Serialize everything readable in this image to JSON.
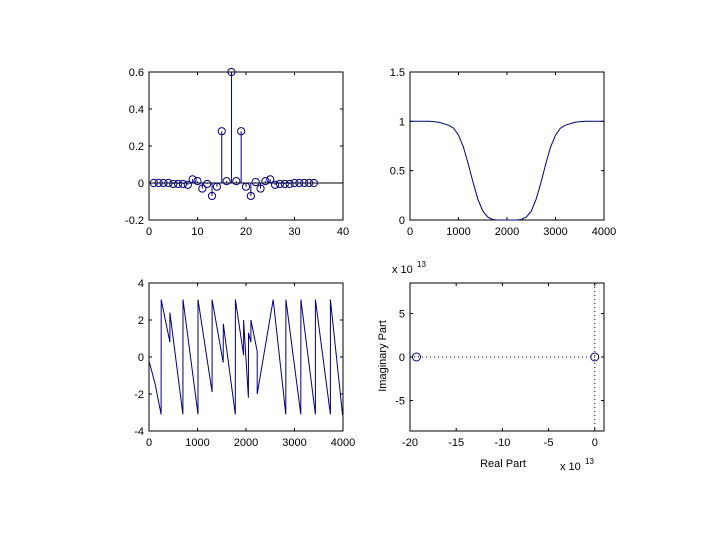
{
  "figure": {
    "background": "#ffffff",
    "line_color": "#00007f"
  },
  "chart_data": [
    {
      "type": "stem",
      "title": "",
      "xlabel": "",
      "ylabel": "",
      "xlim": [
        0,
        40
      ],
      "ylim": [
        -0.2,
        0.6
      ],
      "xticks": [
        0,
        10,
        20,
        30,
        40
      ],
      "xtick_labels": [
        "0",
        "10",
        "20",
        "30",
        "40"
      ],
      "yticks": [
        -0.2,
        0,
        0.2,
        0.4,
        0.6
      ],
      "ytick_labels": [
        "-0.2",
        "0",
        "0.2",
        "0.4",
        "0.6"
      ],
      "grid": false,
      "color": "#00007f",
      "marker": "circle",
      "x": [
        1,
        2,
        3,
        4,
        5,
        6,
        7,
        8,
        9,
        10,
        11,
        12,
        13,
        14,
        15,
        16,
        17,
        18,
        19,
        20,
        21,
        22,
        23,
        24,
        25,
        26,
        27,
        28,
        29,
        30,
        31,
        32,
        33,
        34
      ],
      "y": [
        0,
        0,
        0,
        0,
        -0.005,
        -0.005,
        -0.005,
        -0.01,
        0.02,
        0.01,
        -0.03,
        -0.005,
        -0.07,
        -0.02,
        0.28,
        0.01,
        0.6,
        0.01,
        0.28,
        -0.02,
        -0.07,
        0.005,
        -0.03,
        0.01,
        0.02,
        -0.01,
        -0.005,
        -0.005,
        -0.005,
        0,
        0,
        0,
        0,
        0
      ]
    },
    {
      "type": "line",
      "title": "",
      "xlabel": "",
      "ylabel": "",
      "xlim": [
        0,
        4000
      ],
      "ylim": [
        0,
        1.5
      ],
      "xticks": [
        0,
        1000,
        2000,
        3000,
        4000
      ],
      "xtick_labels": [
        "0",
        "1000",
        "2000",
        "3000",
        "4000"
      ],
      "yticks": [
        0,
        0.5,
        1,
        1.5
      ],
      "ytick_labels": [
        "0",
        "0.5",
        "1",
        "1.5"
      ],
      "grid": false,
      "color": "#00007f",
      "x": [
        0,
        200,
        400,
        600,
        800,
        900,
        1000,
        1100,
        1200,
        1300,
        1400,
        1500,
        1600,
        1700,
        1800,
        1900,
        2000,
        2100,
        2200,
        2300,
        2400,
        2500,
        2600,
        2700,
        2800,
        2900,
        3000,
        3100,
        3200,
        3400,
        3600,
        3800,
        4000
      ],
      "y": [
        1,
        1,
        1,
        0.99,
        0.96,
        0.93,
        0.86,
        0.74,
        0.57,
        0.38,
        0.21,
        0.09,
        0.03,
        0.005,
        0,
        0,
        0,
        0,
        0,
        0.005,
        0.03,
        0.09,
        0.21,
        0.38,
        0.57,
        0.74,
        0.86,
        0.93,
        0.96,
        0.99,
        1,
        1,
        1
      ]
    },
    {
      "type": "line",
      "title": "",
      "xlabel": "",
      "ylabel": "",
      "xlim": [
        0,
        4000
      ],
      "ylim": [
        -4,
        4
      ],
      "xticks": [
        0,
        1000,
        2000,
        3000,
        4000
      ],
      "xtick_labels": [
        "0",
        "1000",
        "2000",
        "3000",
        "4000"
      ],
      "yticks": [
        -4,
        -2,
        0,
        2,
        4
      ],
      "ytick_labels": [
        "-4",
        "-2",
        "0",
        "2",
        "4"
      ],
      "grid": false,
      "color": "#00007f",
      "x": [
        0,
        10,
        130,
        250,
        251,
        430,
        431,
        700,
        701,
        1010,
        1011,
        1300,
        1301,
        1530,
        1531,
        1780,
        1781,
        1950,
        1951,
        2050,
        2051,
        2100,
        2101,
        2230,
        2231,
        2560,
        2561,
        2820,
        2822,
        3130,
        3131,
        3430,
        3431,
        3740,
        3741,
        3990,
        4000
      ],
      "y": [
        -0.3,
        -0.3,
        -1.5,
        -3.1,
        3.1,
        0.8,
        2.4,
        -3.1,
        3.1,
        -3.1,
        3.1,
        -1.9,
        3.1,
        -0.3,
        1.8,
        -3.1,
        3.1,
        0.1,
        2.0,
        -2.2,
        1.3,
        0.8,
        2.0,
        0.3,
        -2.0,
        3.1,
        3.1,
        -3.1,
        3.1,
        -3.1,
        3.1,
        -3.1,
        3.1,
        -3.1,
        3.1,
        -3.1,
        -3.1
      ]
    },
    {
      "type": "scatter",
      "title": "",
      "xlabel": "Real Part",
      "ylabel": "Imaginary Part",
      "xlim": [
        -20,
        1
      ],
      "ylim": [
        -8.5,
        8.5
      ],
      "xticks": [
        -20,
        -15,
        -10,
        -5,
        0
      ],
      "xtick_labels": [
        "-20",
        "-15",
        "-10",
        "-5",
        "0"
      ],
      "yticks": [
        -5,
        0,
        5
      ],
      "ytick_labels": [
        "-5",
        "0",
        "5"
      ],
      "x_exponent_label": "x 10",
      "x_exponent": "13",
      "y_exponent_label": "x 10",
      "y_exponent": "13",
      "grid": false,
      "color": "#00007f",
      "marker": "circle",
      "reference_lines": {
        "horizontal_y": 0,
        "vertical_x": 0,
        "style": "dotted"
      },
      "points": [
        {
          "x": -19.3,
          "y": 0
        },
        {
          "x": 0,
          "y": 0
        }
      ]
    }
  ]
}
